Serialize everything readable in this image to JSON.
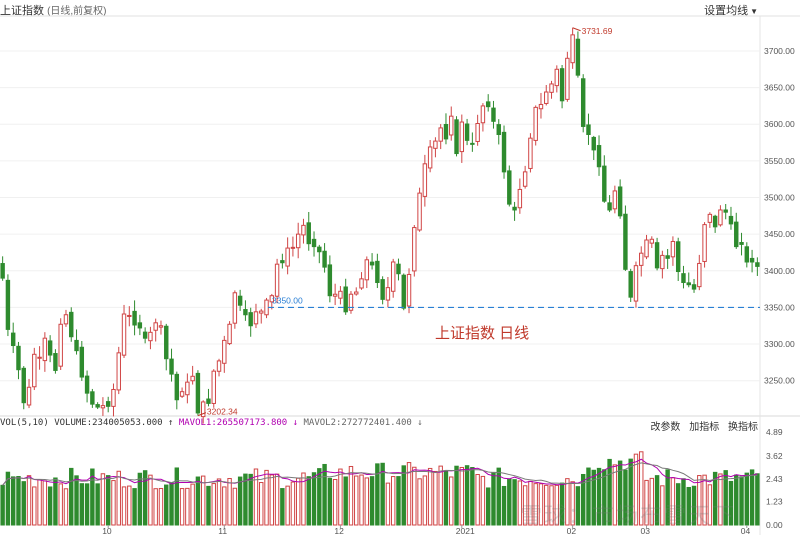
{
  "header": {
    "title": "上证指数",
    "subtitle": "(日线,前复权)",
    "settings_label": "设置均线",
    "settings_caret": "▼"
  },
  "volume_header": {
    "vol": "VOL(5,10)",
    "volume": "VOLUME:234005053.000",
    "volume_arrow": "↑",
    "mavol1": "MAVOL1:265507173.800",
    "mavol1_arrow": "↓",
    "mavol2": "MAVOL2:272772401.400",
    "mavol2_arrow": "↓"
  },
  "tools": [
    "改参数",
    "加指标",
    "换指标"
  ],
  "watermark": "雪球：市场布雪天下",
  "colors": {
    "up": "#d04545",
    "down": "#2e8b2e",
    "ref": "#2a7fd4",
    "mavol1": "#b000b0",
    "mavol2": "#7a7a7a",
    "annot": "#c0392b"
  },
  "chart_data": [
    {
      "type": "candlestick",
      "title": "上证指数 日线",
      "reference_line": {
        "value": 3350,
        "label": "3350.00"
      },
      "annotations": [
        {
          "label": "3731.69",
          "type": "high"
        },
        {
          "label": "3202.34",
          "type": "low"
        }
      ],
      "y_ticks": [
        "3700.00",
        "3650.00",
        "3600.00",
        "3550.00",
        "3500.00",
        "3450.00",
        "3400.00",
        "3350.00",
        "3300.00",
        "3250.00"
      ],
      "ylim": [
        3200,
        3750
      ],
      "months": [
        "10",
        "11",
        "12",
        "2021",
        "02",
        "03",
        "04"
      ],
      "close": [
        3390,
        3320,
        3298,
        3265,
        3220,
        3241,
        3286,
        3282,
        3308,
        3285,
        3264,
        3327,
        3340,
        3310,
        3291,
        3255,
        3233,
        3218,
        3214,
        3216,
        3215,
        3238,
        3288,
        3341,
        3339,
        3326,
        3322,
        3308,
        3316,
        3329,
        3325,
        3280,
        3259,
        3224,
        3235,
        3248,
        3256,
        3206,
        3221,
        3219,
        3263,
        3277,
        3305,
        3327,
        3370,
        3353,
        3340,
        3325,
        3344,
        3345,
        3360,
        3366,
        3409,
        3411,
        3431,
        3432,
        3450,
        3462,
        3437,
        3433,
        3426,
        3405,
        3366,
        3368,
        3372,
        3344,
        3368,
        3371,
        3389,
        3415,
        3408,
        3384,
        3361,
        3377,
        3412,
        3396,
        3349,
        3395,
        3459,
        3506,
        3546,
        3569,
        3577,
        3595,
        3580,
        3611,
        3560,
        3603,
        3578,
        3573,
        3601,
        3625,
        3624,
        3604,
        3586,
        3535,
        3491,
        3483,
        3511,
        3535,
        3581,
        3623,
        3627,
        3644,
        3655,
        3675,
        3632,
        3690,
        3722,
        3667,
        3597,
        3586,
        3565,
        3542,
        3495,
        3483,
        3509,
        3475,
        3402,
        3364,
        3407,
        3424,
        3442,
        3443,
        3404,
        3421,
        3417,
        3440,
        3399,
        3384,
        3381,
        3375,
        3410,
        3463,
        3477,
        3460,
        3483,
        3480,
        3464,
        3433,
        3436,
        3412,
        3412,
        3406
      ]
    },
    {
      "type": "bar",
      "title": "VOL(5,10)",
      "y_ticks": [
        "4.89",
        "3.62",
        "2.43",
        "1.23",
        "0.00"
      ],
      "ylim": [
        0,
        4.89
      ],
      "mavol1": 2.655,
      "mavol2": 2.728
    }
  ]
}
